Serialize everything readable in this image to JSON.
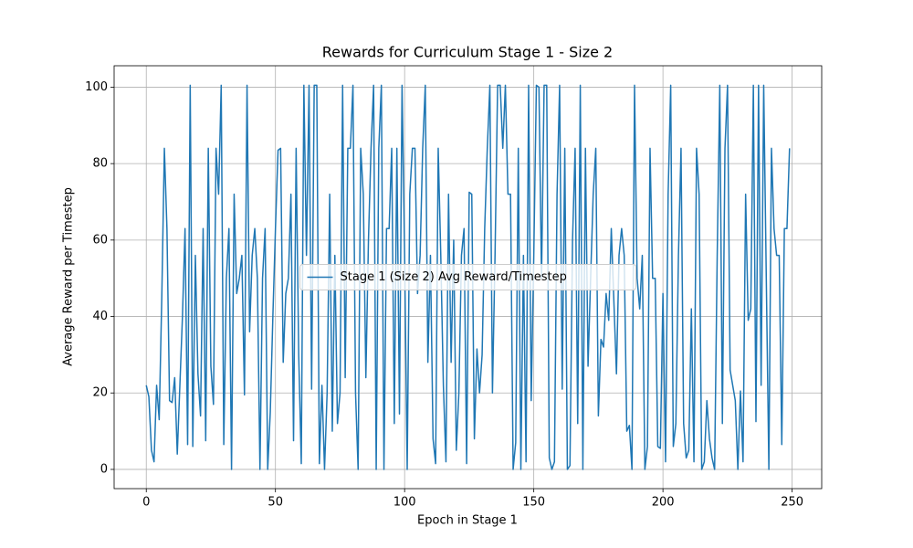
{
  "chart_data": {
    "type": "line",
    "title": "Rewards for Curriculum Stage 1 - Size 2",
    "xlabel": "Epoch in Stage 1",
    "ylabel": "Average Reward per Timestep",
    "x": [
      0,
      1,
      2,
      3,
      4,
      5,
      6,
      7,
      8,
      9,
      10,
      11,
      12,
      13,
      14,
      15,
      16,
      17,
      18,
      19,
      20,
      21,
      22,
      23,
      24,
      25,
      26,
      27,
      28,
      29,
      30,
      31,
      32,
      33,
      34,
      35,
      36,
      37,
      38,
      39,
      40,
      41,
      42,
      43,
      44,
      45,
      46,
      47,
      48,
      49,
      50,
      51,
      52,
      53,
      54,
      55,
      56,
      57,
      58,
      59,
      60,
      61,
      62,
      63,
      64,
      65,
      66,
      67,
      68,
      69,
      70,
      71,
      72,
      73,
      74,
      75,
      76,
      77,
      78,
      79,
      80,
      81,
      82,
      83,
      84,
      85,
      86,
      87,
      88,
      89,
      90,
      91,
      92,
      93,
      94,
      95,
      96,
      97,
      98,
      99,
      100,
      101,
      102,
      103,
      104,
      105,
      106,
      107,
      108,
      109,
      110,
      111,
      112,
      113,
      114,
      115,
      116,
      117,
      118,
      119,
      120,
      121,
      122,
      123,
      124,
      125,
      126,
      127,
      128,
      129,
      130,
      131,
      132,
      133,
      134,
      135,
      136,
      137,
      138,
      139,
      140,
      141,
      142,
      143,
      144,
      145,
      146,
      147,
      148,
      149,
      150,
      151,
      152,
      153,
      154,
      155,
      156,
      157,
      158,
      159,
      160,
      161,
      162,
      163,
      164,
      165,
      166,
      167,
      168,
      169,
      170,
      171,
      172,
      173,
      174,
      175,
      176,
      177,
      178,
      179,
      180,
      181,
      182,
      183,
      184,
      185,
      186,
      187,
      188,
      189,
      190,
      191,
      192,
      193,
      194,
      195,
      196,
      197,
      198,
      199,
      200,
      201,
      202,
      203,
      204,
      205,
      206,
      207,
      208,
      209,
      210,
      211,
      212,
      213,
      214,
      215,
      216,
      217,
      218,
      219,
      220,
      221,
      222,
      223,
      224,
      225,
      226,
      227,
      228,
      229,
      230,
      231,
      232,
      233,
      234,
      235,
      236,
      237,
      238,
      239,
      240,
      241,
      242,
      243,
      244,
      245,
      246,
      247,
      248,
      249
    ],
    "series": [
      {
        "name": "Stage 1 (Size 2) Avg Reward/Timestep",
        "color": "#1f77b4",
        "values": [
          22,
          19,
          5,
          2,
          22,
          13,
          45,
          84,
          63,
          18,
          17.5,
          24,
          4,
          22,
          40,
          63,
          6.5,
          100.5,
          6,
          56,
          25,
          14,
          63,
          7.5,
          84,
          27,
          17,
          84,
          72,
          100.5,
          6.5,
          50,
          63,
          0,
          72,
          46,
          50,
          56,
          19.5,
          100.5,
          36,
          56,
          63,
          50,
          0,
          50,
          63,
          0,
          15,
          40,
          63,
          83.5,
          84,
          28,
          46,
          50,
          72,
          7.5,
          84,
          30,
          1.5,
          100.5,
          56,
          100.5,
          21,
          100.5,
          100.5,
          1.5,
          22,
          0,
          20,
          72,
          10,
          56,
          12,
          20,
          100.5,
          24,
          84,
          84,
          100.5,
          20,
          0,
          84,
          72,
          24,
          60,
          84,
          100.5,
          0,
          84,
          100.5,
          0,
          63,
          63,
          84,
          12,
          84,
          14.5,
          100.5,
          56,
          0,
          72,
          84,
          84,
          46,
          56,
          84,
          100.5,
          28,
          56,
          8,
          1.5,
          84,
          56,
          22,
          2,
          72,
          28,
          60,
          5,
          20,
          56,
          63,
          1.5,
          72.5,
          72,
          8,
          31.5,
          20,
          30,
          63,
          84,
          100.5,
          20,
          56,
          100.5,
          100.5,
          84,
          100.5,
          72,
          72,
          0,
          7,
          84,
          0,
          56,
          2,
          100.5,
          18,
          56,
          100.5,
          100,
          50,
          100.5,
          100.5,
          3,
          0,
          2,
          72,
          100.5,
          21,
          84,
          0,
          1,
          60,
          84,
          12,
          100.5,
          0,
          84,
          27,
          50,
          72,
          84,
          14,
          34,
          32,
          46,
          39,
          63,
          44,
          25,
          56,
          63,
          56,
          10,
          11.5,
          0,
          100.5,
          50,
          42,
          56,
          0,
          6,
          84,
          50,
          50,
          6,
          5.5,
          46,
          2,
          72,
          100.5,
          6,
          12,
          56,
          84,
          12,
          3,
          5,
          42,
          2,
          84,
          72,
          0,
          2,
          18,
          8,
          3,
          0,
          56,
          100.5,
          12,
          84,
          100.5,
          26,
          22,
          18,
          0,
          20.5,
          2,
          72,
          39,
          42,
          100.5,
          12.5,
          100.5,
          22,
          100.5,
          50,
          0,
          84,
          63,
          56,
          56,
          6.5,
          63,
          63,
          84
        ]
      }
    ],
    "xlim": [
      -12.45,
      261.45
    ],
    "ylim": [
      -5.03,
      105.6
    ],
    "xticks": [
      0,
      50,
      100,
      150,
      200,
      250
    ],
    "yticks": [
      0,
      20,
      40,
      60,
      80,
      100
    ],
    "grid": true,
    "legend": "center"
  }
}
